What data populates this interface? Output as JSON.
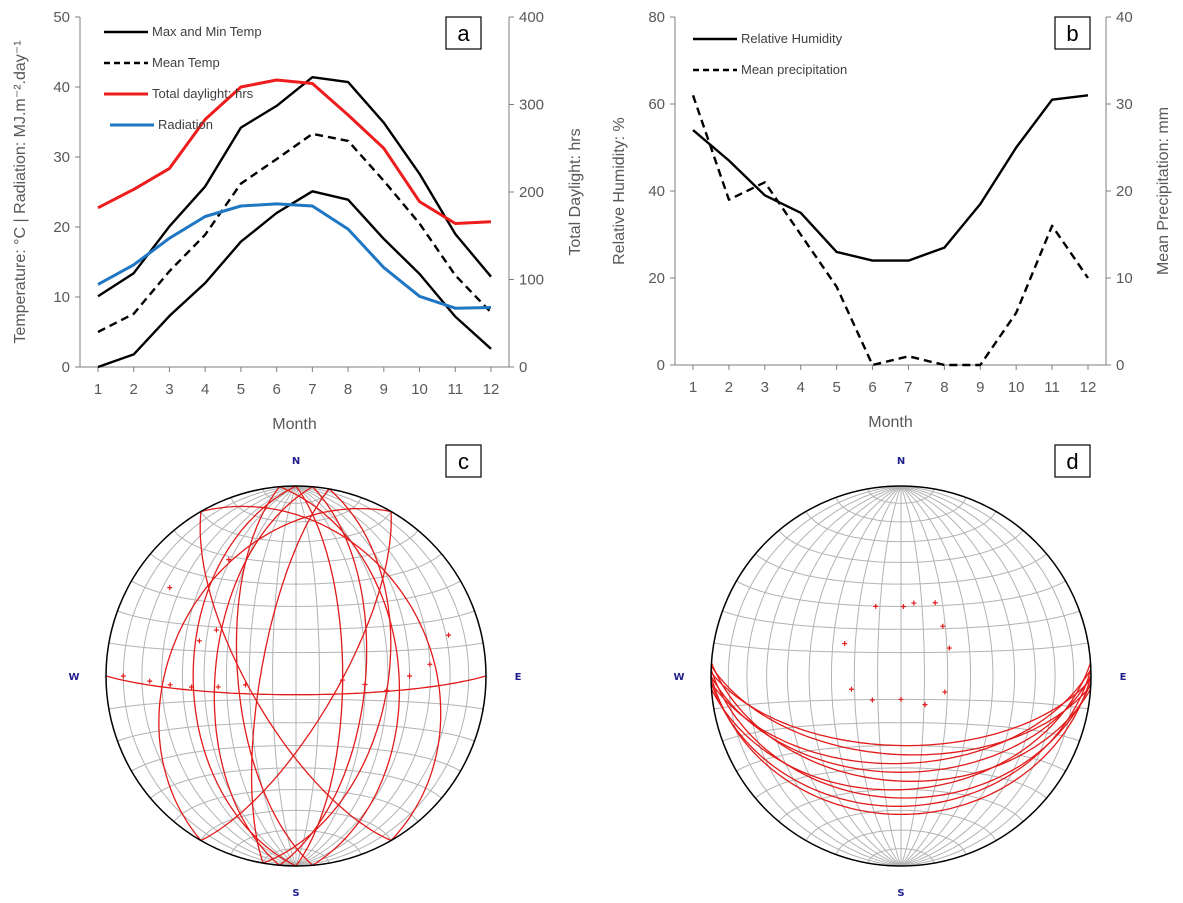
{
  "chart_data": [
    {
      "type": "line",
      "panel_label": "a",
      "x": [
        1,
        2,
        3,
        4,
        5,
        6,
        7,
        8,
        9,
        10,
        11,
        12
      ],
      "xlabel": "Month",
      "ylabel_left": "Temperature: °C | Radiation: MJ.m⁻².day⁻¹",
      "ylabel_right": "Total Daylight: hrs",
      "ylim_left": [
        0,
        50
      ],
      "yticks_left": [
        0,
        10,
        20,
        30,
        40,
        50
      ],
      "ylim_right": [
        0,
        400
      ],
      "yticks_right": [
        0,
        100,
        200,
        300,
        400
      ],
      "series": [
        {
          "name": "Max and Min Temp",
          "axis": "left",
          "style": "solid",
          "color": "#000000",
          "values": [
            10.1,
            13.4,
            20.1,
            25.8,
            34.2,
            37.3,
            41.4,
            40.7,
            34.9,
            27.6,
            19.0,
            12.9
          ]
        },
        {
          "name": "",
          "axis": "left",
          "style": "solid",
          "color": "#000000",
          "values": [
            0.0,
            1.8,
            7.3,
            12.0,
            17.9,
            22.0,
            25.1,
            23.9,
            18.3,
            13.3,
            7.2,
            2.6
          ]
        },
        {
          "name": "Mean Temp",
          "axis": "left",
          "style": "dashed",
          "color": "#000000",
          "values": [
            5.0,
            7.6,
            13.7,
            18.9,
            26.2,
            29.7,
            33.3,
            32.3,
            26.6,
            20.5,
            13.1,
            7.8
          ]
        },
        {
          "name": "Total daylight: hrs",
          "axis": "right",
          "style": "solid",
          "color": "#ee1c1c",
          "values": [
            182,
            203,
            227,
            283,
            320,
            328,
            324,
            288,
            250,
            189,
            164,
            166
          ]
        },
        {
          "name": "Radiation",
          "axis": "left",
          "style": "solid",
          "color": "#1f77c4",
          "values": [
            11.8,
            14.6,
            18.4,
            21.5,
            23.0,
            23.3,
            23.0,
            19.7,
            14.2,
            10.1,
            8.4,
            8.5
          ]
        }
      ]
    },
    {
      "type": "line",
      "panel_label": "b",
      "x": [
        1,
        2,
        3,
        4,
        5,
        6,
        7,
        8,
        9,
        10,
        11,
        12
      ],
      "xlabel": "Month",
      "ylabel_left": "Relative Humidity: %",
      "ylabel_right": "Mean Precipitation: mm",
      "ylim_left": [
        0,
        80
      ],
      "yticks_left": [
        0,
        20,
        40,
        60,
        80
      ],
      "ylim_right": [
        0,
        40
      ],
      "yticks_right": [
        0,
        10,
        20,
        30,
        40
      ],
      "series": [
        {
          "name": "Relative Humidity",
          "axis": "left",
          "style": "solid",
          "color": "#000000",
          "values": [
            54,
            47,
            39,
            35,
            26,
            24,
            24,
            27,
            37,
            50,
            61,
            62
          ]
        },
        {
          "name": "Mean precipitation",
          "axis": "right",
          "style": "dashed",
          "color": "#000000",
          "values": [
            31,
            19,
            21,
            15,
            9,
            0,
            1,
            0,
            0,
            6,
            16,
            10
          ]
        }
      ]
    },
    {
      "type": "scatter",
      "panel_label": "c",
      "compass": {
        "n": "N",
        "s": "S",
        "e": "E",
        "w": "W"
      },
      "planes_dip_direction_dip": [
        [
          90,
          70
        ],
        [
          95,
          60
        ],
        [
          100,
          50
        ],
        [
          85,
          45
        ],
        [
          270,
          45
        ],
        [
          275,
          55
        ],
        [
          265,
          65
        ],
        [
          280,
          75
        ],
        [
          180,
          82
        ],
        [
          60,
          30
        ],
        [
          300,
          35
        ],
        [
          120,
          72
        ],
        [
          240,
          70
        ]
      ],
      "poles_trend_plunge": [
        [
          270,
          10
        ],
        [
          268,
          24
        ],
        [
          266,
          34
        ],
        [
          264,
          44
        ],
        [
          262,
          56
        ],
        [
          260,
          68
        ],
        [
          95,
          70
        ],
        [
          97,
          60
        ],
        [
          99,
          50
        ],
        [
          90,
          40
        ],
        [
          85,
          30
        ],
        [
          75,
          18
        ],
        [
          300,
          50
        ],
        [
          290,
          45
        ],
        [
          330,
          30
        ],
        [
          305,
          20
        ]
      ]
    },
    {
      "type": "scatter",
      "panel_label": "d",
      "compass": {
        "n": "N",
        "s": "S",
        "e": "E",
        "w": "W"
      },
      "planes_dip_direction_dip": [
        [
          180,
          28
        ],
        [
          178,
          32
        ],
        [
          182,
          36
        ],
        [
          176,
          40
        ],
        [
          184,
          44
        ],
        [
          180,
          48
        ],
        [
          178,
          52
        ],
        [
          183,
          56
        ],
        [
          181,
          60
        ]
      ],
      "poles_trend_plunge": [
        [
          2,
          60
        ],
        [
          10,
          58
        ],
        [
          25,
          55
        ],
        [
          40,
          62
        ],
        [
          60,
          66
        ],
        [
          110,
          70
        ],
        [
          140,
          74
        ],
        [
          180,
          80
        ],
        [
          230,
          74
        ],
        [
          255,
          68
        ],
        [
          300,
          62
        ],
        [
          340,
          58
        ]
      ]
    }
  ]
}
